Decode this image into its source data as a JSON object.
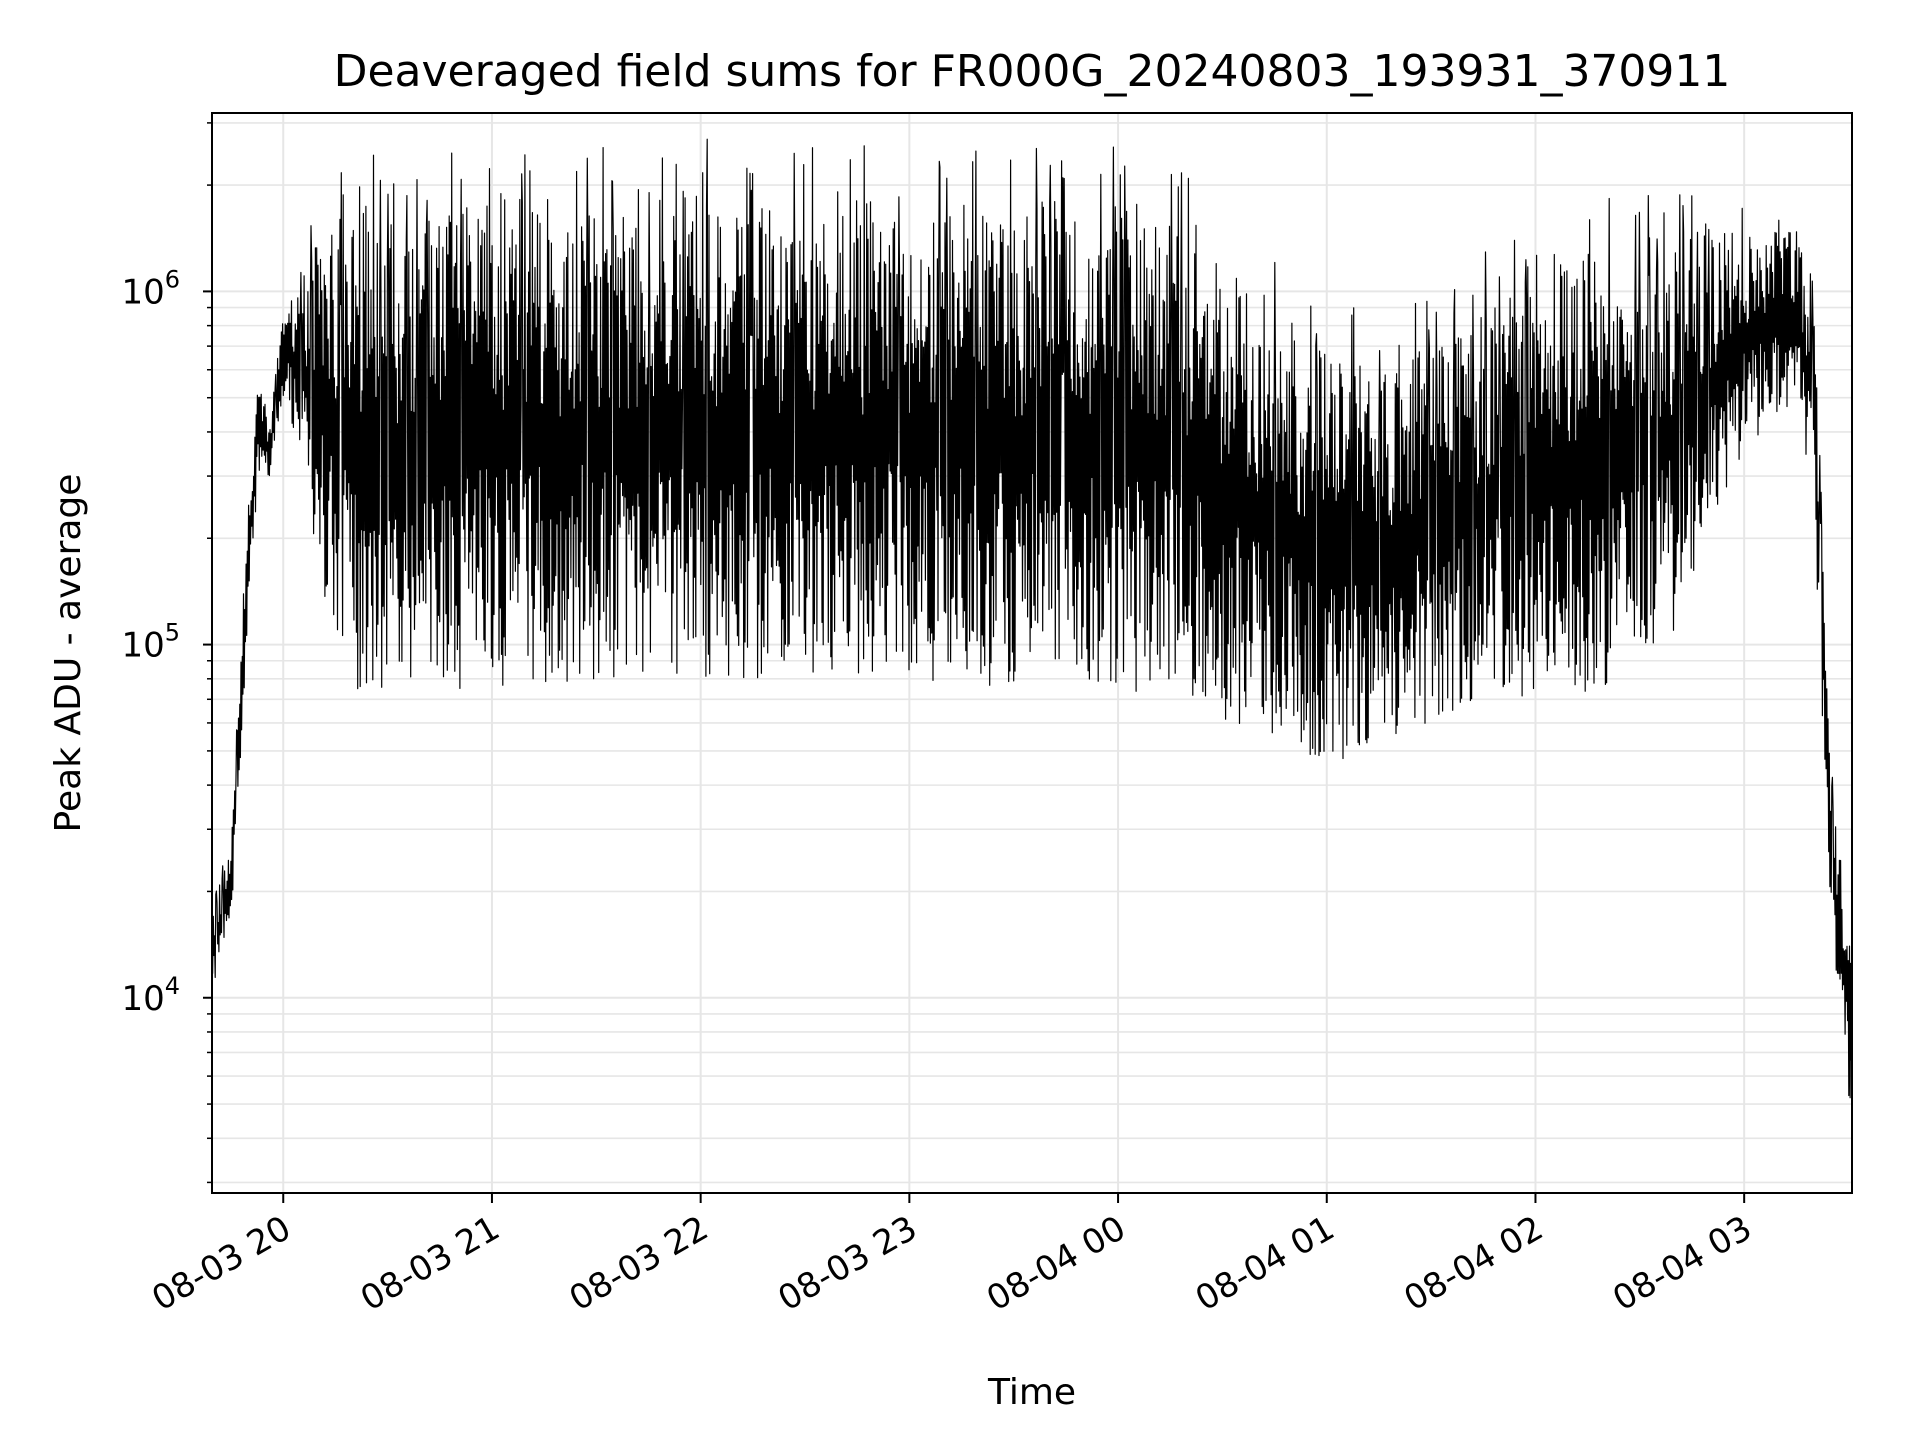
{
  "chart_data": {
    "type": "line",
    "title": "Deaveraged field sums for FR000G_20240803_193931_370911",
    "xlabel": "Time",
    "ylabel": "Peak ADU - average",
    "yscale": "log",
    "ylim": [
      2800,
      3200000
    ],
    "xlim": [
      "2024-08-03 19:39:31",
      "2024-08-04 03:31:00"
    ],
    "grid": true,
    "line_color": "#000000",
    "grid_color": "#e6e6e6",
    "x_ticks": [
      "08-03 20",
      "08-03 21",
      "08-03 22",
      "08-03 23",
      "08-04 00",
      "08-04 01",
      "08-04 02",
      "08-04 03"
    ],
    "y_ticks": [
      {
        "base": "10",
        "exp": "4",
        "value": 10000
      },
      {
        "base": "10",
        "exp": "5",
        "value": 100000
      },
      {
        "base": "10",
        "exp": "6",
        "value": 1000000
      }
    ],
    "series": [
      {
        "x": [
          "2024-08-03 19:39:31",
          "2024-08-03 19:45",
          "2024-08-03 19:50",
          "2024-08-03 19:53",
          "2024-08-03 19:56",
          "2024-08-03 20:00",
          "2024-08-03 20:05",
          "2024-08-03 20:10",
          "2024-08-03 20:20",
          "2024-08-03 20:40",
          "2024-08-03 21:00",
          "2024-08-03 21:30",
          "2024-08-03 22:00",
          "2024-08-03 22:30",
          "2024-08-03 23:00",
          "2024-08-03 23:30",
          "2024-08-04 00:00",
          "2024-08-04 00:20",
          "2024-08-04 00:40",
          "2024-08-04 01:00",
          "2024-08-04 01:20",
          "2024-08-04 01:40",
          "2024-08-04 02:00",
          "2024-08-04 02:20",
          "2024-08-04 02:40",
          "2024-08-04 03:00",
          "2024-08-04 03:15",
          "2024-08-04 03:20",
          "2024-08-04 03:25",
          "2024-08-04 03:31:00"
        ],
        "upper": [
          18000,
          28000,
          250000,
          650000,
          400000,
          900000,
          1100000,
          1400000,
          1700000,
          1750000,
          1850000,
          1800000,
          1850000,
          1850000,
          1800000,
          1800000,
          1800000,
          1500000,
          1000000,
          700000,
          650000,
          900000,
          1200000,
          1300000,
          1400000,
          1500000,
          1500000,
          900000,
          40000,
          15000
        ],
        "lower": [
          10000,
          16000,
          120000,
          300000,
          300000,
          500000,
          350000,
          150000,
          75000,
          75000,
          75000,
          80000,
          80000,
          80000,
          80000,
          75000,
          75000,
          70000,
          55000,
          45000,
          55000,
          65000,
          70000,
          75000,
          110000,
          350000,
          500000,
          250000,
          15000,
          4000
        ]
      }
    ]
  }
}
